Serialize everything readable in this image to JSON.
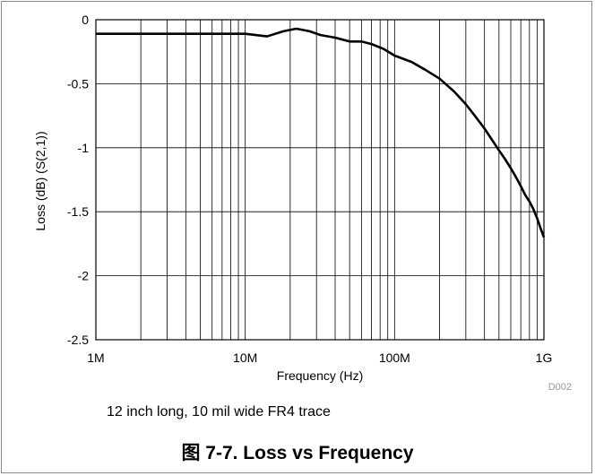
{
  "chart_data": {
    "type": "line",
    "xscale": "log",
    "xlim": [
      1000000,
      1000000000
    ],
    "ylim": [
      -2.5,
      0
    ],
    "xlabel": "Frequency (Hz)",
    "ylabel": "Loss (dB) (S(2,1))",
    "x_ticks": [
      {
        "value": 1000000,
        "label": "1M"
      },
      {
        "value": 10000000,
        "label": "10M"
      },
      {
        "value": 100000000,
        "label": "100M"
      },
      {
        "value": 1000000000,
        "label": "1G"
      }
    ],
    "y_ticks": [
      {
        "value": 0,
        "label": "0"
      },
      {
        "value": -0.5,
        "label": "-0.5"
      },
      {
        "value": -1,
        "label": "-1"
      },
      {
        "value": -1.5,
        "label": "-1.5"
      },
      {
        "value": -2,
        "label": "-2"
      },
      {
        "value": -2.5,
        "label": "-2.5"
      }
    ],
    "grid": true,
    "line_color": "#000000",
    "x": [
      1000000,
      2000000,
      5000000,
      10000000,
      14000000,
      18000000,
      22000000,
      27000000,
      32000000,
      40000000,
      50000000,
      60000000,
      70000000,
      85000000,
      100000000,
      130000000,
      160000000,
      200000000,
      250000000,
      300000000,
      350000000,
      400000000,
      450000000,
      500000000,
      550000000,
      600000000,
      650000000,
      700000000,
      750000000,
      800000000,
      850000000,
      900000000,
      950000000,
      1000000000
    ],
    "y": [
      -0.11,
      -0.11,
      -0.11,
      -0.11,
      -0.13,
      -0.09,
      -0.07,
      -0.09,
      -0.12,
      -0.14,
      -0.17,
      -0.17,
      -0.19,
      -0.23,
      -0.28,
      -0.33,
      -0.39,
      -0.46,
      -0.56,
      -0.66,
      -0.76,
      -0.85,
      -0.94,
      -1.02,
      -1.09,
      -1.16,
      -1.23,
      -1.3,
      -1.37,
      -1.42,
      -1.48,
      -1.55,
      -1.63,
      -1.7
    ],
    "code": "D002"
  },
  "note": "12 inch long, 10 mil wide FR4 trace",
  "caption": "图 7-7. Loss vs Frequency"
}
